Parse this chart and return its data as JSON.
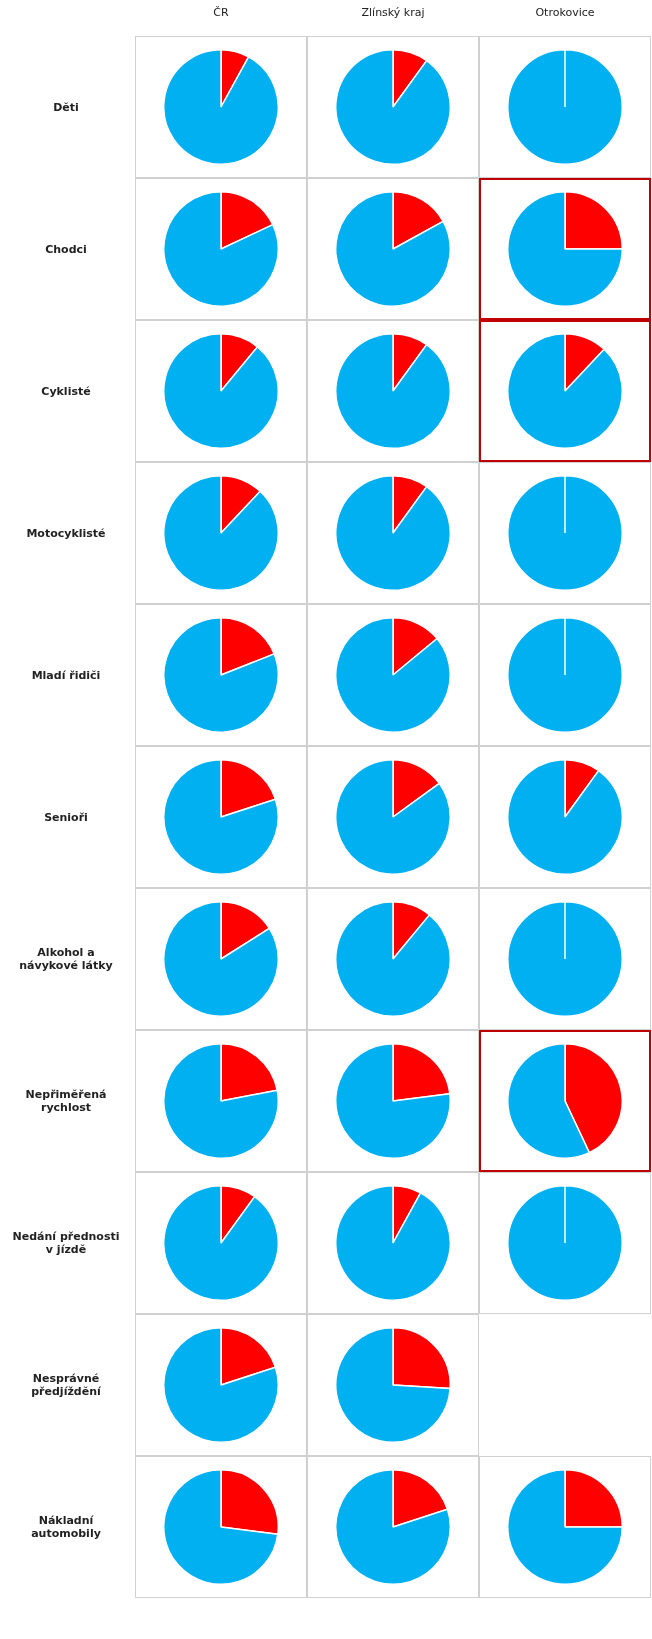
{
  "chart_data": [
    {
      "type": "pie",
      "title": "ČR",
      "ylabel": "Děti",
      "categories": [
        null,
        null
      ],
      "values": [
        8,
        92
      ],
      "colors": [
        "#ff0000",
        "#00b0f0"
      ],
      "legend": false
    },
    {
      "type": "pie",
      "title": "Zlínský kraj",
      "categories": [
        null,
        null
      ],
      "values": [
        10,
        90
      ],
      "colors": [
        "#ff0000",
        "#00b0f0"
      ],
      "legend": false
    },
    {
      "type": "pie",
      "title": "Otrokovice",
      "categories": [
        null,
        null
      ],
      "values": [
        0,
        100
      ],
      "colors": [
        "#ff0000",
        "#00b0f0"
      ],
      "legend": false
    },
    {
      "type": "pie",
      "ylabel": "Chodci",
      "categories": [
        null,
        null
      ],
      "values": [
        18,
        82
      ],
      "colors": [
        "#ff0000",
        "#00b0f0"
      ],
      "legend": false
    },
    {
      "type": "pie",
      "categories": [
        null,
        null
      ],
      "values": [
        17,
        83
      ],
      "colors": [
        "#ff0000",
        "#00b0f0"
      ],
      "legend": false
    },
    {
      "type": "pie",
      "categories": [
        null,
        null
      ],
      "values": [
        25,
        75
      ],
      "colors": [
        "#ff0000",
        "#00b0f0"
      ],
      "legend": false
    },
    {
      "type": "pie",
      "ylabel": "Cyklisté",
      "categories": [
        null,
        null
      ],
      "values": [
        11,
        89
      ],
      "colors": [
        "#ff0000",
        "#00b0f0"
      ],
      "legend": false
    },
    {
      "type": "pie",
      "categories": [
        null,
        null
      ],
      "values": [
        10,
        90
      ],
      "colors": [
        "#ff0000",
        "#00b0f0"
      ],
      "legend": false
    },
    {
      "type": "pie",
      "categories": [
        null,
        null
      ],
      "values": [
        12,
        88
      ],
      "colors": [
        "#ff0000",
        "#00b0f0"
      ],
      "legend": false
    },
    {
      "type": "pie",
      "ylabel": "Motocyklisté",
      "categories": [
        null,
        null
      ],
      "values": [
        12,
        88
      ],
      "colors": [
        "#ff0000",
        "#00b0f0"
      ],
      "legend": false
    },
    {
      "type": "pie",
      "categories": [
        null,
        null
      ],
      "values": [
        10,
        90
      ],
      "colors": [
        "#ff0000",
        "#00b0f0"
      ],
      "legend": false
    },
    {
      "type": "pie",
      "categories": [
        null,
        null
      ],
      "values": [
        0,
        100
      ],
      "colors": [
        "#ff0000",
        "#00b0f0"
      ],
      "legend": false
    },
    {
      "type": "pie",
      "ylabel": "Mladí řidiči",
      "categories": [
        null,
        null
      ],
      "values": [
        19,
        81
      ],
      "colors": [
        "#ff0000",
        "#00b0f0"
      ],
      "legend": false
    },
    {
      "type": "pie",
      "categories": [
        null,
        null
      ],
      "values": [
        14,
        86
      ],
      "colors": [
        "#ff0000",
        "#00b0f0"
      ],
      "legend": false
    },
    {
      "type": "pie",
      "categories": [
        null,
        null
      ],
      "values": [
        0,
        100
      ],
      "colors": [
        "#ff0000",
        "#00b0f0"
      ],
      "legend": false
    },
    {
      "type": "pie",
      "ylabel": "Senioři",
      "categories": [
        null,
        null
      ],
      "values": [
        20,
        80
      ],
      "colors": [
        "#ff0000",
        "#00b0f0"
      ],
      "legend": false
    },
    {
      "type": "pie",
      "categories": [
        null,
        null
      ],
      "values": [
        15,
        85
      ],
      "colors": [
        "#ff0000",
        "#00b0f0"
      ],
      "legend": false
    },
    {
      "type": "pie",
      "categories": [
        null,
        null
      ],
      "values": [
        10,
        90
      ],
      "colors": [
        "#ff0000",
        "#00b0f0"
      ],
      "legend": false
    },
    {
      "type": "pie",
      "ylabel": "Alkohol a návykové látky",
      "categories": [
        null,
        null
      ],
      "values": [
        16,
        84
      ],
      "colors": [
        "#ff0000",
        "#00b0f0"
      ],
      "legend": false
    },
    {
      "type": "pie",
      "categories": [
        null,
        null
      ],
      "values": [
        11,
        89
      ],
      "colors": [
        "#ff0000",
        "#00b0f0"
      ],
      "legend": false
    },
    {
      "type": "pie",
      "categories": [
        null,
        null
      ],
      "values": [
        0,
        100
      ],
      "colors": [
        "#ff0000",
        "#00b0f0"
      ],
      "legend": false
    },
    {
      "type": "pie",
      "ylabel": "Nepřiměřená rychlost",
      "categories": [
        null,
        null
      ],
      "values": [
        22,
        78
      ],
      "colors": [
        "#ff0000",
        "#00b0f0"
      ],
      "legend": false
    },
    {
      "type": "pie",
      "categories": [
        null,
        null
      ],
      "values": [
        23,
        77
      ],
      "colors": [
        "#ff0000",
        "#00b0f0"
      ],
      "legend": false
    },
    {
      "type": "pie",
      "categories": [
        null,
        null
      ],
      "values": [
        43,
        57
      ],
      "colors": [
        "#ff0000",
        "#00b0f0"
      ],
      "legend": false
    },
    {
      "type": "pie",
      "ylabel": "Nedání přednosti v jízdě",
      "categories": [
        null,
        null
      ],
      "values": [
        10,
        90
      ],
      "colors": [
        "#ff0000",
        "#00b0f0"
      ],
      "legend": false
    },
    {
      "type": "pie",
      "categories": [
        null,
        null
      ],
      "values": [
        8,
        92
      ],
      "colors": [
        "#ff0000",
        "#00b0f0"
      ],
      "legend": false
    },
    {
      "type": "pie",
      "categories": [
        null,
        null
      ],
      "values": [
        0,
        100
      ],
      "colors": [
        "#ff0000",
        "#00b0f0"
      ],
      "legend": false
    },
    {
      "type": "pie",
      "ylabel": "Nesprávné předjíždění",
      "categories": [
        null,
        null
      ],
      "values": [
        20,
        80
      ],
      "colors": [
        "#ff0000",
        "#00b0f0"
      ],
      "legend": false
    },
    {
      "type": "pie",
      "categories": [
        null,
        null
      ],
      "values": [
        26,
        74
      ],
      "colors": [
        "#ff0000",
        "#00b0f0"
      ],
      "legend": false
    },
    {
      "type": "pie",
      "ylabel": "Nákladní automobily",
      "categories": [
        null,
        null
      ],
      "values": [
        27,
        73
      ],
      "colors": [
        "#ff0000",
        "#00b0f0"
      ],
      "legend": false
    },
    {
      "type": "pie",
      "categories": [
        null,
        null
      ],
      "values": [
        20,
        80
      ],
      "colors": [
        "#ff0000",
        "#00b0f0"
      ],
      "legend": false
    },
    {
      "type": "pie",
      "categories": [
        null,
        null
      ],
      "values": [
        25,
        75
      ],
      "colors": [
        "#ff0000",
        "#00b0f0"
      ],
      "legend": false
    }
  ]
}
